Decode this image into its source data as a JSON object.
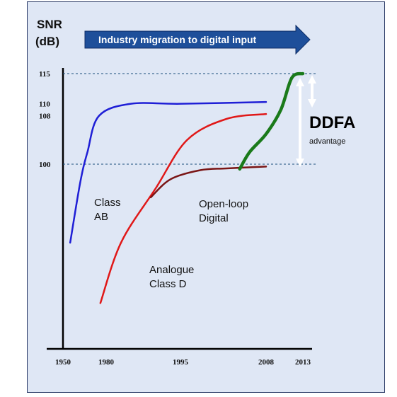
{
  "chart_data": {
    "type": "line",
    "ylabel_line1": "SNR",
    "ylabel_line2": "(dB)",
    "banner": "Industry migration to digital input",
    "x_ticks": [
      "1950",
      "1980",
      "1995",
      "2008",
      "2013"
    ],
    "y_ticks": [
      "115",
      "110",
      "108",
      "100"
    ],
    "reference_lines": [
      115,
      100
    ],
    "series": [
      {
        "name": "Class AB",
        "label_lines": [
          "Class",
          "AB"
        ],
        "color": "#1f1fd6",
        "points": [
          [
            1955,
            87
          ],
          [
            1962,
            97
          ],
          [
            1967,
            102
          ],
          [
            1975,
            108
          ],
          [
            1985,
            110
          ],
          [
            1995,
            110
          ],
          [
            2008,
            110.3
          ]
        ]
      },
      {
        "name": "Analogue Class D",
        "label_lines": [
          "Analogue",
          "Class D"
        ],
        "color": "#e01818",
        "points": [
          [
            1976,
            77
          ],
          [
            1983,
            87
          ],
          [
            1990,
            96
          ],
          [
            1996,
            104
          ],
          [
            2002,
            107.5
          ],
          [
            2008,
            108.3
          ]
        ]
      },
      {
        "name": "Open-loop Digital",
        "label_lines": [
          "Open-loop",
          "Digital"
        ],
        "color": "#7a1515",
        "points": [
          [
            1989,
            94.5
          ],
          [
            1993,
            97.5
          ],
          [
            1998,
            99
          ],
          [
            2002,
            99.3
          ],
          [
            2008,
            99.6
          ]
        ]
      },
      {
        "name": "DDFA",
        "label_lines": [],
        "color": "#1a7a1a",
        "points": [
          [
            2004,
            99.2
          ],
          [
            2005.5,
            102
          ],
          [
            2008,
            105
          ],
          [
            2010,
            109
          ],
          [
            2011.5,
            114.3
          ],
          [
            2013,
            115
          ]
        ]
      }
    ],
    "annotation": {
      "title": "DDFA",
      "subtitle": "advantage"
    }
  }
}
